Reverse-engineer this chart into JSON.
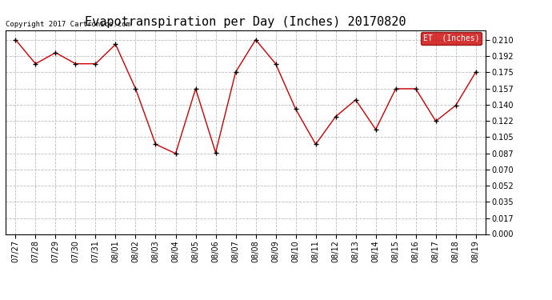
{
  "title": "Evapotranspiration per Day (Inches) 20170820",
  "copyright": "Copyright 2017 Cartronics.com",
  "legend_label": "ET  (Inches)",
  "legend_bg": "#cc0000",
  "legend_text_color": "#ffffff",
  "line_color": "#cc0000",
  "marker_color": "#000000",
  "x_labels": [
    "07/27",
    "07/28",
    "07/29",
    "07/30",
    "07/31",
    "08/01",
    "08/02",
    "08/03",
    "08/04",
    "08/05",
    "08/06",
    "08/07",
    "08/08",
    "08/09",
    "08/10",
    "08/11",
    "08/12",
    "08/13",
    "08/14",
    "08/15",
    "08/16",
    "08/17",
    "08/18",
    "08/19"
  ],
  "y_values": [
    0.21,
    0.184,
    0.196,
    0.184,
    0.184,
    0.205,
    0.157,
    0.097,
    0.087,
    0.157,
    0.088,
    0.175,
    0.21,
    0.184,
    0.135,
    0.097,
    0.127,
    0.145,
    0.113,
    0.157,
    0.157,
    0.122,
    0.139,
    0.175
  ],
  "ylim": [
    0.0,
    0.2205
  ],
  "yticks": [
    0.0,
    0.017,
    0.035,
    0.052,
    0.07,
    0.087,
    0.105,
    0.122,
    0.14,
    0.157,
    0.175,
    0.192,
    0.21
  ],
  "bg_color": "#ffffff",
  "grid_color": "#bbbbbb",
  "title_fontsize": 11,
  "tick_fontsize": 7,
  "copyright_fontsize": 6.5
}
